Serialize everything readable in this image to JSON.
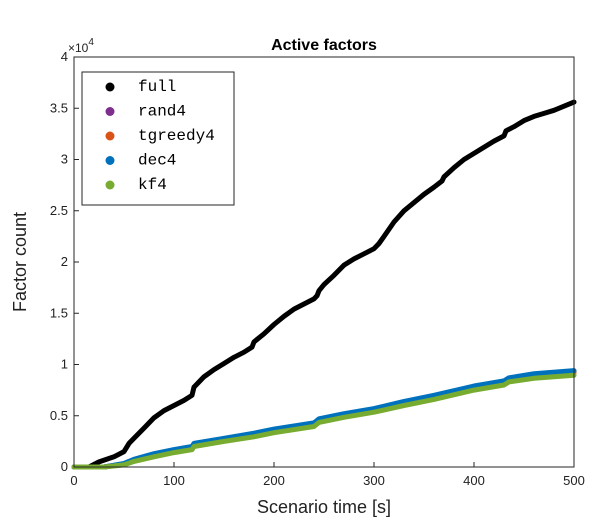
{
  "chart_data": {
    "type": "line",
    "title": "Active factors",
    "xlabel": "Scenario time [s]",
    "ylabel": "Factor count",
    "xlim": [
      0,
      500
    ],
    "ylim": [
      0,
      40000
    ],
    "y_exponent_label": "×10",
    "y_exponent_power": "4",
    "x_ticks": [
      "0",
      "100",
      "200",
      "300",
      "400",
      "500"
    ],
    "y_ticks": [
      "0",
      "0.5",
      "1",
      "1.5",
      "2",
      "2.5",
      "3",
      "3.5",
      "4"
    ],
    "grid": false,
    "legend_position": "top-left",
    "series": [
      {
        "name": "full",
        "color": "#000000",
        "x": [
          0,
          15,
          25,
          40,
          50,
          55,
          60,
          70,
          80,
          90,
          100,
          110,
          118,
          120,
          130,
          140,
          150,
          160,
          170,
          178,
          180,
          190,
          200,
          210,
          220,
          230,
          240,
          243,
          245,
          250,
          260,
          270,
          280,
          290,
          300,
          305,
          310,
          320,
          330,
          340,
          350,
          360,
          368,
          370,
          380,
          390,
          400,
          410,
          420,
          430,
          432,
          440,
          450,
          460,
          470,
          480,
          490,
          500
        ],
        "y": [
          0,
          0,
          500,
          1000,
          1500,
          2300,
          2800,
          3800,
          4800,
          5500,
          6000,
          6500,
          7000,
          7800,
          8800,
          9500,
          10100,
          10700,
          11200,
          11700,
          12200,
          13000,
          13900,
          14700,
          15400,
          15900,
          16400,
          16700,
          17200,
          17800,
          18700,
          19700,
          20300,
          20800,
          21300,
          21800,
          22500,
          23900,
          25000,
          25800,
          26600,
          27300,
          27900,
          28300,
          29200,
          30000,
          30600,
          31200,
          31800,
          32300,
          32800,
          33200,
          33800,
          34200,
          34500,
          34800,
          35200,
          35600
        ]
      },
      {
        "name": "rand4",
        "color": "#7e2f8e",
        "x": [
          0,
          30,
          50,
          60,
          80,
          100,
          118,
          120,
          150,
          180,
          200,
          240,
          245,
          270,
          300,
          330,
          360,
          400,
          430,
          435,
          460,
          500
        ],
        "y": [
          0,
          0,
          300,
          700,
          1200,
          1600,
          1900,
          2200,
          2700,
          3200,
          3600,
          4200,
          4600,
          5100,
          5600,
          6300,
          6900,
          7800,
          8300,
          8600,
          9000,
          9300
        ]
      },
      {
        "name": "tgreedy4",
        "color": "#d95319",
        "x": [
          0,
          30,
          50,
          60,
          80,
          100,
          118,
          120,
          150,
          180,
          200,
          240,
          245,
          270,
          300,
          330,
          360,
          400,
          430,
          435,
          460,
          500
        ],
        "y": [
          0,
          0,
          250,
          600,
          1100,
          1500,
          1800,
          2100,
          2600,
          3100,
          3500,
          4100,
          4500,
          5000,
          5500,
          6200,
          6800,
          7700,
          8200,
          8500,
          8900,
          9200
        ]
      },
      {
        "name": "dec4",
        "color": "#0072bd",
        "x": [
          0,
          30,
          50,
          60,
          80,
          100,
          118,
          120,
          150,
          180,
          200,
          240,
          245,
          270,
          300,
          330,
          360,
          400,
          430,
          435,
          460,
          500
        ],
        "y": [
          0,
          0,
          350,
          750,
          1300,
          1700,
          2000,
          2300,
          2800,
          3300,
          3700,
          4300,
          4700,
          5200,
          5700,
          6400,
          7000,
          7900,
          8400,
          8700,
          9100,
          9400
        ]
      },
      {
        "name": "kf4",
        "color": "#77ac30",
        "x": [
          0,
          30,
          50,
          60,
          80,
          100,
          118,
          120,
          150,
          180,
          200,
          240,
          245,
          270,
          300,
          330,
          360,
          400,
          430,
          435,
          460,
          500
        ],
        "y": [
          0,
          0,
          200,
          550,
          1000,
          1400,
          1700,
          2000,
          2500,
          2950,
          3350,
          3950,
          4350,
          4850,
          5350,
          6000,
          6600,
          7500,
          8000,
          8300,
          8650,
          8950
        ]
      }
    ]
  }
}
